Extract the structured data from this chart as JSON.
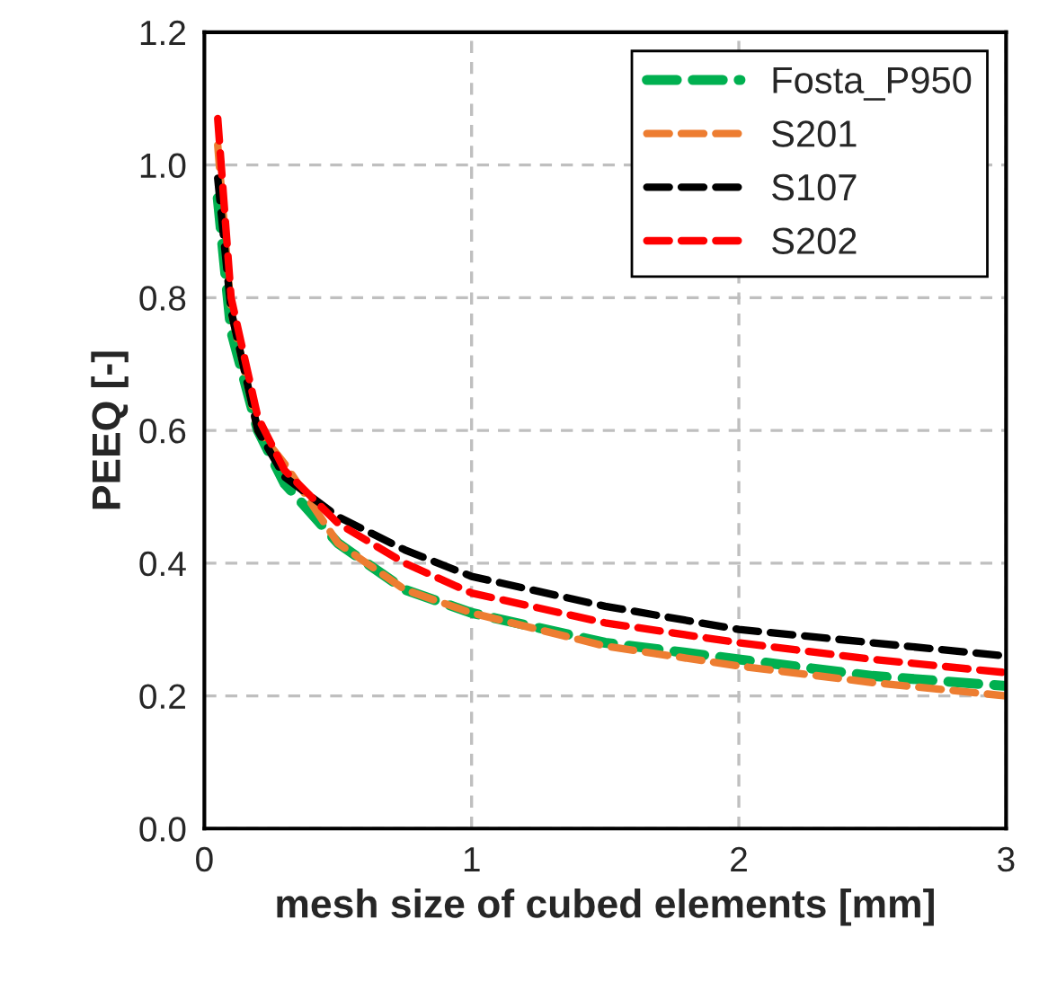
{
  "chart_data": {
    "type": "line",
    "xlabel": "mesh size of cubed elements [mm]",
    "ylabel": "PEEQ [-]",
    "xlim": [
      0,
      3
    ],
    "xticks": [
      0,
      1,
      2,
      3
    ],
    "ylim": [
      0,
      1.2
    ],
    "yticks": [
      {
        "value": 0,
        "label": "0.0"
      },
      0.2,
      0.4,
      0.6,
      0.8,
      {
        "value": 1,
        "label": "1.0"
      },
      1.2
    ],
    "grid": true,
    "legend": "top right",
    "line_style": "dashed",
    "marker": "none",
    "x": [
      0.05,
      0.1,
      0.2,
      0.3,
      0.5,
      0.75,
      1,
      1.5,
      2,
      2.5,
      3
    ],
    "series": [
      {
        "name": "Fosta_P950",
        "color": "#00b050",
        "values": [
          0.95,
          0.75,
          0.6,
          0.52,
          0.43,
          0.36,
          0.325,
          0.28,
          0.255,
          0.23,
          0.215
        ]
      },
      {
        "name": "S201",
        "color": "#ed7d31",
        "values": [
          1.03,
          0.78,
          0.6,
          0.55,
          0.43,
          0.36,
          0.325,
          0.275,
          0.245,
          0.22,
          0.2
        ]
      },
      {
        "name": "S107",
        "color": "#000000",
        "values": [
          0.98,
          0.78,
          0.6,
          0.53,
          0.47,
          0.42,
          0.38,
          0.335,
          0.3,
          0.28,
          0.26
        ]
      },
      {
        "name": "S202",
        "color": "#ff0000",
        "values": [
          1.07,
          0.8,
          0.62,
          0.54,
          0.46,
          0.4,
          0.355,
          0.31,
          0.28,
          0.255,
          0.235
        ]
      }
    ]
  }
}
